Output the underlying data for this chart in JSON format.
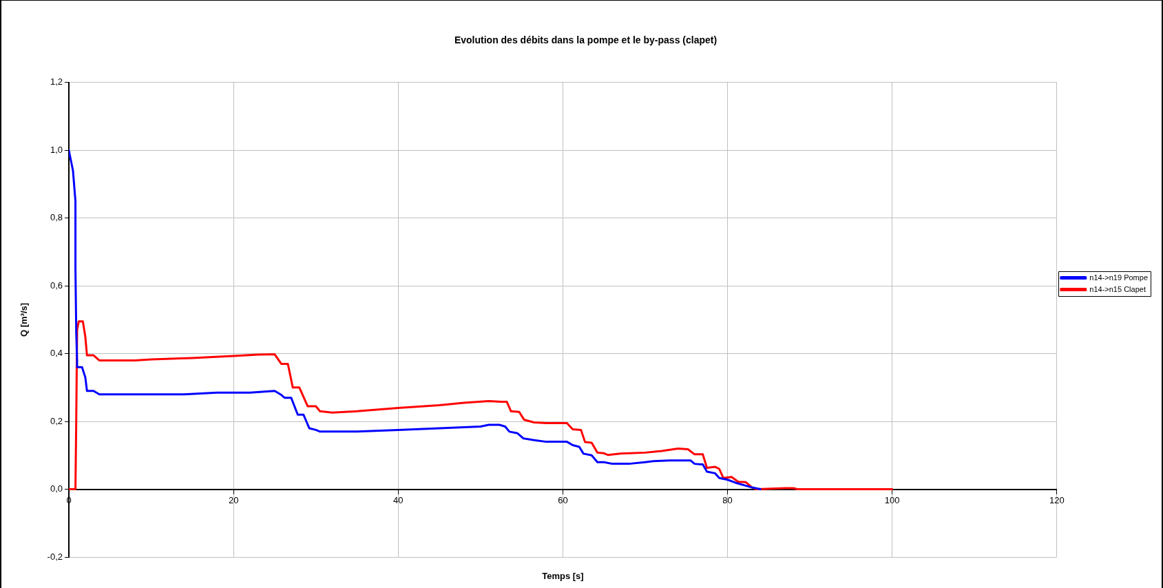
{
  "chart_data": {
    "type": "line",
    "title": "Evolution des débits dans la pompe et le by-pass (clapet)",
    "xlabel": "Temps [s]",
    "ylabel": "Q [m³/s]",
    "xlim": [
      0,
      120
    ],
    "xticks": [
      0,
      20,
      40,
      60,
      80,
      100,
      120
    ],
    "ylim": [
      -0.2,
      1.2
    ],
    "yticks": [
      {
        "value": -0.2,
        "label": "-0,2"
      },
      {
        "value": 0,
        "label": "0,0"
      },
      {
        "value": 0.2,
        "label": "0,2"
      },
      {
        "value": 0.4,
        "label": "0,4"
      },
      {
        "value": 0.6,
        "label": "0,6"
      },
      {
        "value": 0.8,
        "label": "0,8"
      },
      {
        "value": 1.0,
        "label": "1,0"
      },
      {
        "value": 1.2,
        "label": "1,2"
      }
    ],
    "grid": true,
    "legend": "right",
    "marker": "none",
    "line_style": "solid",
    "series": [
      {
        "name": "n14->n19 Pompe",
        "color": "#0000ff",
        "x": [
          0,
          0.5,
          0.8,
          0.8,
          0.9,
          1.0,
          1.0,
          1.6,
          2.0,
          2.2,
          3.0,
          3.7,
          9,
          10,
          14,
          18,
          22,
          25,
          25.7,
          26.2,
          27,
          27.8,
          28.5,
          29.2,
          30,
          30.5,
          35,
          40,
          45,
          50,
          51,
          52.3,
          53,
          53.5,
          54.5,
          55.2,
          56.5,
          58,
          60.5,
          61.2,
          62,
          62.5,
          63.5,
          64.2,
          65,
          66,
          68,
          70,
          71,
          73,
          75.5,
          76,
          77,
          77.5,
          78.5,
          79,
          80,
          81,
          82,
          83,
          84
        ],
        "values": [
          1.0,
          0.94,
          0.85,
          0.65,
          0.46,
          0.38,
          0.36,
          0.36,
          0.33,
          0.29,
          0.29,
          0.28,
          0.28,
          0.28,
          0.28,
          0.285,
          0.285,
          0.29,
          0.28,
          0.27,
          0.27,
          0.22,
          0.22,
          0.18,
          0.175,
          0.17,
          0.17,
          0.175,
          0.18,
          0.185,
          0.19,
          0.19,
          0.185,
          0.17,
          0.165,
          0.15,
          0.145,
          0.14,
          0.14,
          0.13,
          0.125,
          0.105,
          0.1,
          0.08,
          0.08,
          0.075,
          0.075,
          0.08,
          0.083,
          0.085,
          0.085,
          0.075,
          0.073,
          0.052,
          0.047,
          0.033,
          0.028,
          0.019,
          0.012,
          0.005,
          0
        ]
      },
      {
        "name": "n14->n15 Clapet",
        "color": "#ff0000",
        "x": [
          0,
          0.8,
          0.9,
          1.0,
          1.2,
          1.7,
          2.0,
          2.2,
          3.0,
          3.7,
          8,
          10,
          15,
          20,
          23,
          25,
          25.8,
          26.6,
          27.2,
          28,
          29,
          30,
          30.5,
          32,
          35,
          40,
          45,
          48,
          51,
          52.5,
          53.2,
          53.7,
          54.7,
          55.3,
          56.5,
          58,
          60.5,
          61.2,
          62.2,
          62.7,
          63.5,
          64.2,
          65,
          65.5,
          67,
          70,
          72,
          74,
          75.2,
          76,
          77,
          77.5,
          78.5,
          79,
          79.5,
          80.5,
          81.3,
          82.2,
          83,
          83.5,
          87,
          88,
          88.5,
          100
        ],
        "values": [
          0,
          0,
          0.21,
          0.47,
          0.495,
          0.495,
          0.45,
          0.395,
          0.395,
          0.38,
          0.38,
          0.383,
          0.387,
          0.393,
          0.397,
          0.398,
          0.37,
          0.37,
          0.3,
          0.3,
          0.245,
          0.245,
          0.23,
          0.226,
          0.23,
          0.24,
          0.248,
          0.255,
          0.26,
          0.258,
          0.258,
          0.23,
          0.228,
          0.205,
          0.197,
          0.195,
          0.195,
          0.177,
          0.175,
          0.139,
          0.137,
          0.108,
          0.106,
          0.101,
          0.105,
          0.108,
          0.113,
          0.12,
          0.118,
          0.103,
          0.103,
          0.063,
          0.066,
          0.06,
          0.033,
          0.036,
          0.022,
          0.021,
          0.005,
          0,
          0.003,
          0.003,
          0,
          0
        ]
      }
    ]
  }
}
